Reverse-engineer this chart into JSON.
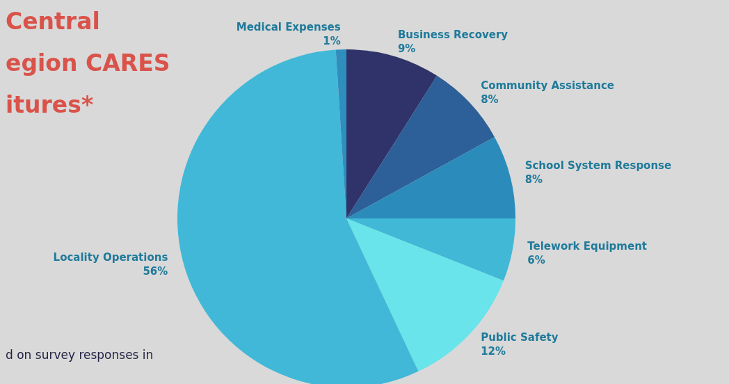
{
  "chart_data": {
    "type": "pie",
    "title": "Central\negion CARES\nitures*",
    "categories": [
      "Business Recovery",
      "Community Assistance",
      "School System Response",
      "Telework Equipment",
      "Public Safety",
      "Locality Operations",
      "Medical Expenses"
    ],
    "values": [
      9,
      8,
      8,
      6,
      12,
      56,
      1
    ],
    "colors": [
      "#2f3369",
      "#2d5f98",
      "#2b8bbb",
      "#40b8d6",
      "#68e4ea",
      "#41b8d7",
      "#2e8fbe"
    ],
    "value_labels": [
      "9%",
      "8%",
      "8%",
      "6%",
      "12%",
      "56%",
      "1%"
    ],
    "annotations": [
      "d on survey responses in"
    ]
  }
}
